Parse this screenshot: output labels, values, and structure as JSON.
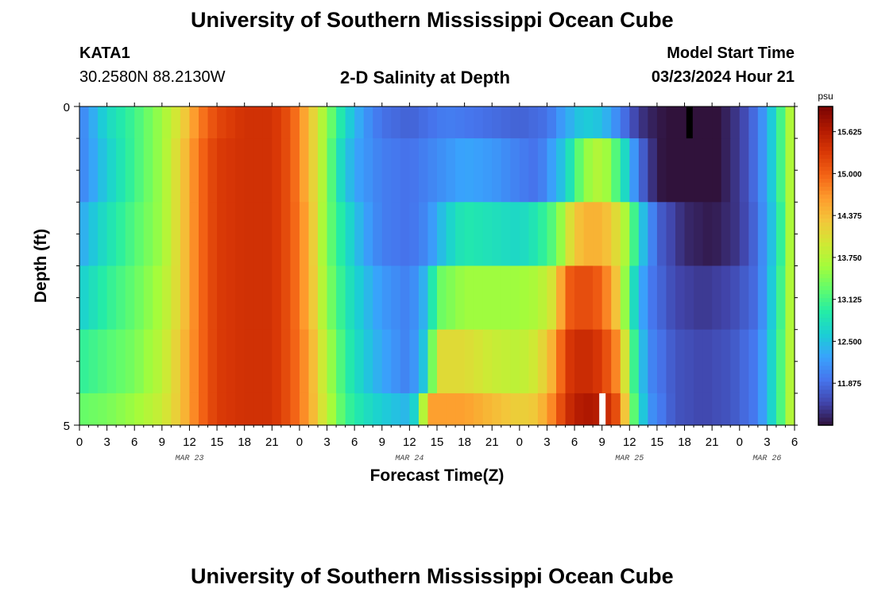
{
  "header": {
    "title": "University of Southern Mississippi Ocean Cube",
    "station": "KATA1",
    "coords": "30.2580N  88.2130W",
    "subtitle": "2-D Salinity at Depth",
    "model_start_label": "Model Start Time",
    "model_start_value": "03/23/2024 Hour 21"
  },
  "footer": {
    "title": "University of Southern Mississippi Ocean Cube"
  },
  "colors": {
    "scale": [
      "#30123b",
      "#4145ab",
      "#4675ed",
      "#39a2fc",
      "#1bcfd4",
      "#24eca6",
      "#61fc6c",
      "#a4fc3b",
      "#d1e834",
      "#f3c63a",
      "#fe9b2d",
      "#f36315",
      "#d93806",
      "#b11901",
      "#7a0403"
    ]
  },
  "chart_data": {
    "type": "heatmap",
    "title": "2-D Salinity at Depth",
    "xlabel": "Forecast Time(Z)",
    "ylabel": "Depth (ft)",
    "y_ticks": [
      "0",
      "5"
    ],
    "ylim": [
      0,
      5
    ],
    "x_hours_range": [
      0,
      78
    ],
    "x_tick_labels": [
      "0",
      "3",
      "6",
      "9",
      "12",
      "15",
      "18",
      "21",
      "0",
      "3",
      "6",
      "9",
      "12",
      "15",
      "18",
      "21",
      "0",
      "3",
      "6",
      "9",
      "12",
      "15",
      "18",
      "21",
      "0",
      "3",
      "6"
    ],
    "date_labels": [
      {
        "label": "MAR 23",
        "hour": 12
      },
      {
        "label": "MAR 24",
        "hour": 36
      },
      {
        "label": "MAR 25",
        "hour": 60
      },
      {
        "label": "MAR 26",
        "hour": 75
      }
    ],
    "colorbar": {
      "unit": "psu",
      "range": [
        11.25,
        16.0
      ],
      "ticks": [
        "11.875",
        "12.500",
        "13.125",
        "13.750",
        "14.375",
        "15.000",
        "15.625"
      ]
    },
    "rows": [
      {
        "depth_top": 0,
        "depth_bottom": 0.5,
        "knots": [
          [
            0,
            12.0
          ],
          [
            3,
            12.7
          ],
          [
            6,
            13.1
          ],
          [
            9,
            13.6
          ],
          [
            11,
            14.1
          ],
          [
            13,
            14.8
          ],
          [
            15,
            15.2
          ],
          [
            18,
            15.4
          ],
          [
            21,
            15.4
          ],
          [
            23,
            15.1
          ],
          [
            25,
            14.4
          ],
          [
            27,
            13.5
          ],
          [
            29,
            12.7
          ],
          [
            31,
            12.2
          ],
          [
            33,
            11.9
          ],
          [
            36,
            11.8
          ],
          [
            40,
            12.0
          ],
          [
            44,
            11.9
          ],
          [
            48,
            11.8
          ],
          [
            51,
            11.9
          ],
          [
            53,
            12.3
          ],
          [
            55,
            12.6
          ],
          [
            57,
            12.5
          ],
          [
            59,
            12.0
          ],
          [
            61,
            11.5
          ],
          [
            63,
            11.3
          ],
          [
            66,
            11.2
          ],
          [
            69,
            11.2
          ],
          [
            71,
            11.4
          ],
          [
            73,
            11.7
          ],
          [
            75,
            12.3
          ],
          [
            77,
            13.4
          ],
          [
            78,
            14.0
          ]
        ]
      },
      {
        "depth_top": 0.5,
        "depth_bottom": 1.5,
        "knots": [
          [
            0,
            12.0
          ],
          [
            3,
            12.6
          ],
          [
            6,
            13.1
          ],
          [
            9,
            13.6
          ],
          [
            11,
            14.2
          ],
          [
            13,
            14.9
          ],
          [
            15,
            15.3
          ],
          [
            18,
            15.4
          ],
          [
            21,
            15.4
          ],
          [
            23,
            15.1
          ],
          [
            25,
            14.4
          ],
          [
            27,
            13.5
          ],
          [
            28,
            12.9
          ],
          [
            30,
            12.3
          ],
          [
            33,
            12.0
          ],
          [
            36,
            11.9
          ],
          [
            39,
            12.1
          ],
          [
            42,
            12.3
          ],
          [
            45,
            12.2
          ],
          [
            48,
            12.0
          ],
          [
            50,
            11.9
          ],
          [
            53,
            12.6
          ],
          [
            55,
            13.5
          ],
          [
            57,
            13.8
          ],
          [
            59,
            13.0
          ],
          [
            61,
            11.9
          ],
          [
            63,
            11.3
          ],
          [
            66,
            11.15
          ],
          [
            69,
            11.2
          ],
          [
            71,
            11.4
          ],
          [
            73,
            11.7
          ],
          [
            75,
            12.3
          ],
          [
            77,
            13.4
          ],
          [
            78,
            14.0
          ]
        ]
      },
      {
        "depth_top": 1.5,
        "depth_bottom": 2.5,
        "knots": [
          [
            0,
            12.3
          ],
          [
            3,
            12.8
          ],
          [
            6,
            13.2
          ],
          [
            9,
            13.6
          ],
          [
            11,
            14.2
          ],
          [
            13,
            14.9
          ],
          [
            15,
            15.3
          ],
          [
            18,
            15.4
          ],
          [
            21,
            15.4
          ],
          [
            23,
            15.1
          ],
          [
            25,
            14.5
          ],
          [
            27,
            13.4
          ],
          [
            29,
            12.8
          ],
          [
            31,
            12.3
          ],
          [
            33,
            12.0
          ],
          [
            36,
            11.9
          ],
          [
            38,
            12.1
          ],
          [
            40,
            12.6
          ],
          [
            42,
            12.9
          ],
          [
            45,
            12.8
          ],
          [
            48,
            12.7
          ],
          [
            50,
            12.9
          ],
          [
            52,
            13.3
          ],
          [
            54,
            14.3
          ],
          [
            56,
            14.5
          ],
          [
            58,
            14.3
          ],
          [
            60,
            13.5
          ],
          [
            61,
            12.7
          ],
          [
            63,
            11.8
          ],
          [
            66,
            11.4
          ],
          [
            69,
            11.3
          ],
          [
            72,
            11.5
          ],
          [
            74,
            11.9
          ],
          [
            76,
            12.7
          ],
          [
            78,
            14.0
          ]
        ]
      },
      {
        "depth_top": 2.5,
        "depth_bottom": 3.5,
        "knots": [
          [
            0,
            12.6
          ],
          [
            3,
            13.0
          ],
          [
            6,
            13.3
          ],
          [
            9,
            13.7
          ],
          [
            11,
            14.2
          ],
          [
            13,
            14.9
          ],
          [
            15,
            15.3
          ],
          [
            18,
            15.4
          ],
          [
            21,
            15.4
          ],
          [
            23,
            15.1
          ],
          [
            25,
            14.5
          ],
          [
            27,
            13.5
          ],
          [
            29,
            12.9
          ],
          [
            31,
            12.5
          ],
          [
            33,
            12.2
          ],
          [
            36,
            12.0
          ],
          [
            38,
            12.5
          ],
          [
            39,
            13.3
          ],
          [
            42,
            13.6
          ],
          [
            45,
            13.6
          ],
          [
            48,
            13.6
          ],
          [
            50,
            13.7
          ],
          [
            52,
            14.1
          ],
          [
            53,
            15.0
          ],
          [
            55,
            15.2
          ],
          [
            57,
            15.0
          ],
          [
            59,
            14.1
          ],
          [
            60,
            13.0
          ],
          [
            62,
            12.0
          ],
          [
            65,
            11.6
          ],
          [
            68,
            11.5
          ],
          [
            71,
            11.6
          ],
          [
            74,
            11.9
          ],
          [
            76,
            12.8
          ],
          [
            78,
            14.0
          ]
        ]
      },
      {
        "depth_top": 3.5,
        "depth_bottom": 4.5,
        "knots": [
          [
            0,
            13.0
          ],
          [
            3,
            13.2
          ],
          [
            6,
            13.4
          ],
          [
            9,
            13.8
          ],
          [
            11,
            14.3
          ],
          [
            13,
            14.9
          ],
          [
            15,
            15.3
          ],
          [
            18,
            15.4
          ],
          [
            21,
            15.4
          ],
          [
            23,
            15.1
          ],
          [
            25,
            14.6
          ],
          [
            27,
            13.7
          ],
          [
            29,
            13.0
          ],
          [
            31,
            12.6
          ],
          [
            33,
            12.3
          ],
          [
            36,
            12.0
          ],
          [
            38,
            12.7
          ],
          [
            39,
            14.1
          ],
          [
            42,
            14.1
          ],
          [
            45,
            13.9
          ],
          [
            48,
            13.8
          ],
          [
            50,
            14.0
          ],
          [
            52,
            14.6
          ],
          [
            53,
            15.3
          ],
          [
            55,
            15.5
          ],
          [
            57,
            15.3
          ],
          [
            59,
            14.6
          ],
          [
            60,
            13.4
          ],
          [
            62,
            12.1
          ],
          [
            65,
            11.7
          ],
          [
            68,
            11.6
          ],
          [
            71,
            11.7
          ],
          [
            74,
            12.0
          ],
          [
            76,
            12.9
          ],
          [
            78,
            14.0
          ]
        ]
      },
      {
        "depth_top": 4.5,
        "depth_bottom": 5.0,
        "knots": [
          [
            0,
            13.3
          ],
          [
            3,
            13.4
          ],
          [
            6,
            13.6
          ],
          [
            9,
            13.9
          ],
          [
            11,
            14.3
          ],
          [
            13,
            14.9
          ],
          [
            15,
            15.3
          ],
          [
            18,
            15.4
          ],
          [
            21,
            15.4
          ],
          [
            23,
            15.1
          ],
          [
            25,
            14.6
          ],
          [
            27,
            13.8
          ],
          [
            29,
            13.1
          ],
          [
            31,
            12.8
          ],
          [
            33,
            12.6
          ],
          [
            36,
            12.4
          ],
          [
            37,
            12.9
          ],
          [
            38,
            14.6
          ],
          [
            42,
            14.6
          ],
          [
            45,
            14.4
          ],
          [
            48,
            14.2
          ],
          [
            50,
            14.3
          ],
          [
            52,
            14.9
          ],
          [
            53,
            15.4
          ],
          [
            55,
            15.7
          ],
          [
            57,
            15.6
          ],
          [
            59,
            15.0
          ],
          [
            60,
            13.6
          ],
          [
            62,
            12.2
          ],
          [
            65,
            11.7
          ],
          [
            68,
            11.6
          ],
          [
            71,
            11.7
          ],
          [
            74,
            12.0
          ],
          [
            76,
            12.9
          ],
          [
            78,
            14.0
          ]
        ]
      }
    ],
    "missing_cells": [
      {
        "hour": 66.5,
        "depth_top": 0,
        "depth_bottom": 0.5,
        "color": "#000000"
      },
      {
        "hour": 57,
        "depth_top": 4.5,
        "depth_bottom": 5.0,
        "color": "#ffffff"
      }
    ]
  }
}
